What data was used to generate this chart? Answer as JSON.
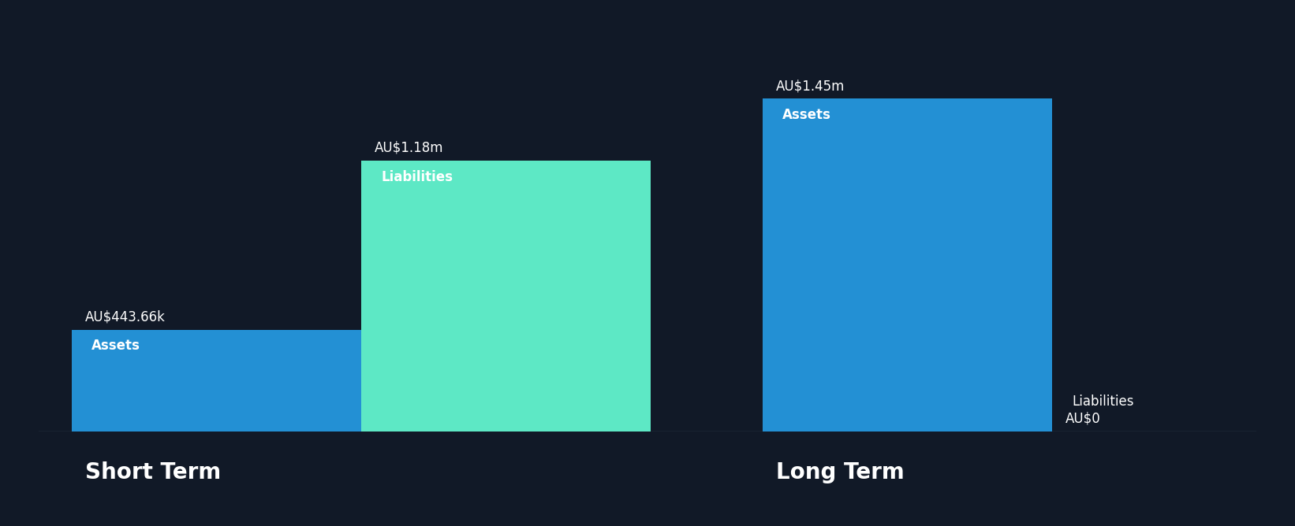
{
  "background_color": "#111927",
  "text_color": "#ffffff",
  "short_term_label": "Short Term",
  "long_term_label": "Long Term",
  "short_assets_value": 0.44366,
  "short_assets_label": "Assets",
  "short_assets_annotation": "AU$443.66k",
  "short_assets_color": "#2390d4",
  "short_liab_value": 1.18,
  "short_liab_label": "Liabilities",
  "short_liab_annotation": "AU$1.18m",
  "short_liab_color": "#5de8c5",
  "long_assets_value": 1.45,
  "long_assets_label": "Assets",
  "long_assets_annotation": "AU$1.45m",
  "long_assets_color": "#2390d4",
  "long_liab_value": 0,
  "long_liab_label": "Liabilities",
  "long_liab_annotation": "AU$0",
  "long_liab_color": "#5de8c5",
  "ylim_max": 1.72,
  "section_label_fontsize": 20,
  "bar_label_fontsize": 12,
  "annotation_fontsize": 12
}
